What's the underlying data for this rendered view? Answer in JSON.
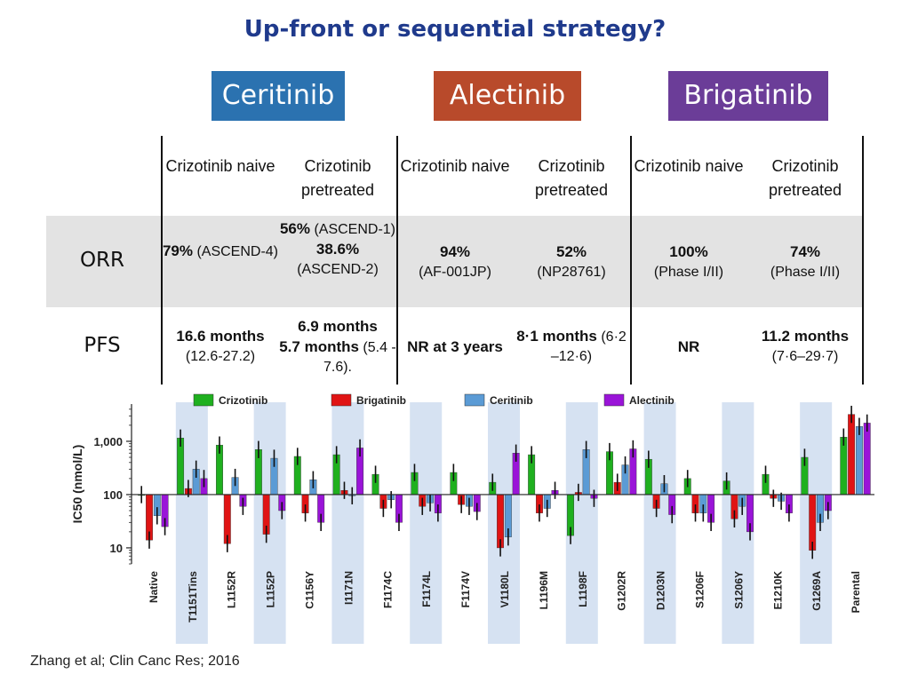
{
  "title": "Up-front or sequential strategy?",
  "drugs": [
    {
      "name": "Ceritinib",
      "color": "#2b72b0"
    },
    {
      "name": "Alectinib",
      "color": "#b84a2b"
    },
    {
      "name": "Brigatinib",
      "color": "#6b3d98"
    }
  ],
  "table": {
    "columns": [
      "Crizotinib naive",
      "Crizotinib pretreated",
      "Crizotinib naive",
      "Crizotinib pretreated",
      "Crizotinib naive",
      "Crizotinib pretreated"
    ],
    "rows": [
      {
        "label": "ORR",
        "cells": [
          [
            {
              "t": "79%",
              "b": true
            },
            {
              "t": " (ASCEND-4)"
            }
          ],
          [
            {
              "t": "56%",
              "b": true
            },
            {
              "t": " (ASCEND-1)"
            },
            {
              "br": true
            },
            {
              "t": "38.6%",
              "b": true
            },
            {
              "br": true
            },
            {
              "t": "(ASCEND-2)"
            }
          ],
          [
            {
              "t": "94%",
              "b": true
            },
            {
              "br": true
            },
            {
              "t": "(AF-001JP)"
            }
          ],
          [
            {
              "t": "52%",
              "b": true
            },
            {
              "br": true
            },
            {
              "t": "(NP28761)"
            }
          ],
          [
            {
              "t": "100%",
              "b": true
            },
            {
              "br": true
            },
            {
              "t": "(Phase I/II)"
            }
          ],
          [
            {
              "t": "74%",
              "b": true
            },
            {
              "br": true
            },
            {
              "t": "(Phase I/II)"
            }
          ]
        ]
      },
      {
        "label": "PFS",
        "cells": [
          [
            {
              "t": "16.6 months",
              "b": true
            },
            {
              "br": true
            },
            {
              "t": "(12.6-27.2)"
            }
          ],
          [
            {
              "t": "6.9 months",
              "b": true
            },
            {
              "br": true
            },
            {
              "t": "5.7 months",
              "b": true
            },
            {
              "t": " (5.4 - 7.6)."
            }
          ],
          [
            {
              "t": "NR at 3 years",
              "b": true
            }
          ],
          [
            {
              "t": "8·1 months",
              "b": true
            },
            {
              "t": " (6·2 –12·6)"
            }
          ],
          [
            {
              "t": "NR",
              "b": true
            }
          ],
          [
            {
              "t": "11.2 months",
              "b": true
            },
            {
              "br": true
            },
            {
              "t": "(7·6–29·7)"
            }
          ]
        ]
      }
    ]
  },
  "chart_data": {
    "type": "bar",
    "title": "",
    "xlabel": "",
    "ylabel": "IC50 (nmol/L)",
    "ylog": true,
    "ylim": [
      5,
      5000
    ],
    "baseline": 100,
    "yticks": [
      "1,000",
      "100",
      "10"
    ],
    "ytick_values": [
      1000,
      100,
      10
    ],
    "legend_position": "top",
    "categories": [
      "Native",
      "T1151Tins",
      "L1152R",
      "L1152P",
      "C1156Y",
      "I1171N",
      "F1174C",
      "F1174L",
      "F1174V",
      "V1180L",
      "L1196M",
      "L1198F",
      "G1202R",
      "D1203N",
      "S1206F",
      "S1206Y",
      "E1210K",
      "G1269A",
      "Parental"
    ],
    "highlighted_categories": [
      "T1151Tins",
      "L1152P",
      "I1171N",
      "F1174L",
      "V1180L",
      "L1198F",
      "D1203N",
      "S1206Y",
      "G1269A"
    ],
    "series": [
      {
        "name": "Crizotinib",
        "color": "#1fb01f",
        "values": [
          100,
          1150,
          850,
          700,
          520,
          560,
          240,
          260,
          260,
          170,
          560,
          17,
          640,
          460,
          200,
          180,
          240,
          500,
          1200
        ]
      },
      {
        "name": "Brigatinib",
        "color": "#e01414",
        "values": [
          14,
          130,
          12,
          18,
          45,
          120,
          55,
          60,
          65,
          10,
          45,
          110,
          170,
          55,
          45,
          35,
          85,
          9,
          3200
        ]
      },
      {
        "name": "Ceritinib",
        "color": "#5b9bd5",
        "values": [
          40,
          300,
          210,
          480,
          190,
          95,
          80,
          70,
          60,
          16,
          55,
          700,
          360,
          160,
          45,
          60,
          75,
          30,
          1900
        ]
      },
      {
        "name": "Alectinib",
        "color": "#9a14d8",
        "values": [
          25,
          200,
          60,
          50,
          30,
          750,
          30,
          45,
          48,
          600,
          120,
          85,
          720,
          42,
          30,
          20,
          45,
          50,
          2200
        ]
      }
    ]
  },
  "citation": "Zhang et al; Clin Canc Res; 2016"
}
